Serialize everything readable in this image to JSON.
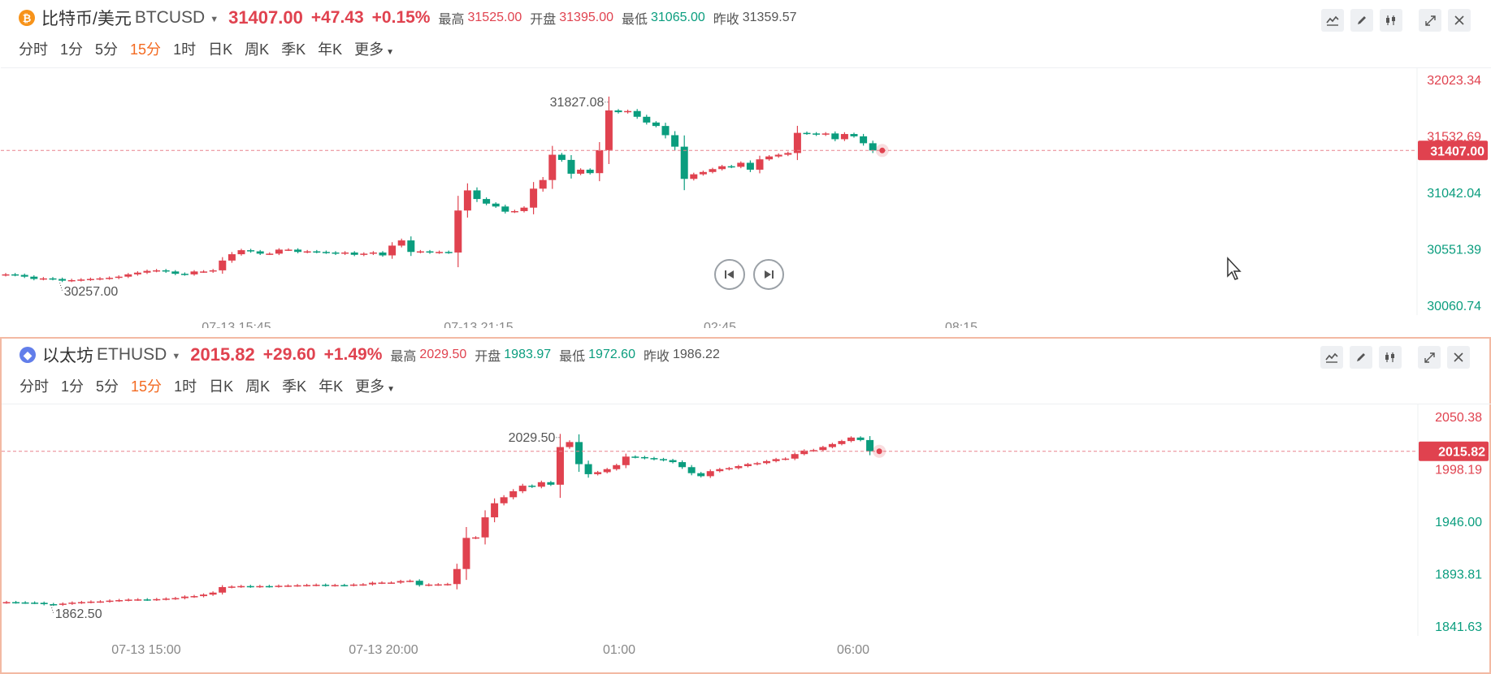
{
  "btc": {
    "name": "比特币/美元",
    "symbol": "BTCUSD",
    "price": "31407.00",
    "change": "+47.43",
    "change_pct": "+0.15%",
    "high_label": "最高",
    "high": "31525.00",
    "open_label": "开盘",
    "open": "31395.00",
    "low_label": "最低",
    "low": "31065.00",
    "prev_label": "昨收",
    "prev": "31359.57",
    "y_ticks": [
      "32023.34",
      "31532.69",
      "31042.04",
      "30551.39",
      "30060.74"
    ],
    "y_range": [
      30060.74,
      32023.34
    ],
    "x_ticks": [
      "07-13 15:45",
      "07-13 21:15",
      "02:45",
      "08:15"
    ],
    "max_label": "31827.08",
    "min_label": "30257.00",
    "current_tag": "31407.00",
    "closes": [
      30330,
      30325,
      30310,
      30290,
      30295,
      30290,
      30275,
      30280,
      30285,
      30290,
      30295,
      30300,
      30310,
      30330,
      30345,
      30360,
      30365,
      30355,
      30335,
      30330,
      30355,
      30355,
      30365,
      30450,
      30505,
      30540,
      30530,
      30510,
      30510,
      30545,
      30545,
      30525,
      30530,
      30525,
      30520,
      30510,
      30520,
      30500,
      30510,
      30520,
      30495,
      30580,
      30625,
      30525,
      30530,
      30520,
      30525,
      30520,
      30885,
      31060,
      30985,
      30945,
      30920,
      30875,
      30880,
      30910,
      31075,
      31150,
      31370,
      31325,
      31205,
      31240,
      31210,
      31410,
      31755,
      31740,
      31750,
      31700,
      31650,
      31620,
      31540,
      31440,
      31160,
      31200,
      31220,
      31245,
      31270,
      31265,
      31300,
      31240,
      31330,
      31355,
      31370,
      31385,
      31560,
      31555,
      31545,
      31555,
      31505,
      31550,
      31530,
      31470,
      31407
    ],
    "colors": {
      "up": "#e0424f",
      "down": "#0a9d7e"
    }
  },
  "eth": {
    "name": "以太坊",
    "symbol": "ETHUSD",
    "price": "2015.82",
    "change": "+29.60",
    "change_pct": "+1.49%",
    "high_label": "最高",
    "high": "2029.50",
    "open_label": "开盘",
    "open": "1983.97",
    "low_label": "最低",
    "low": "1972.60",
    "prev_label": "昨收",
    "prev": "1986.22",
    "y_ticks": [
      "2050.38",
      "1998.19",
      "1946.00",
      "1893.81",
      "1841.63"
    ],
    "y_range": [
      1841.63,
      2050.38
    ],
    "x_ticks": [
      "07-13 15:00",
      "07-13 20:00",
      "01:00",
      "06:00"
    ],
    "max_label": "2029.50",
    "min_label": "1862.50",
    "current_tag": "2015.82",
    "closes": [
      1865.5,
      1865.2,
      1865,
      1864.8,
      1863.5,
      1863,
      1864,
      1865,
      1865.5,
      1866,
      1866.2,
      1867,
      1867.5,
      1868,
      1868.2,
      1868,
      1868.5,
      1869,
      1869.5,
      1871,
      1871.5,
      1873,
      1875,
      1880.5,
      1881,
      1881.5,
      1881,
      1881.5,
      1881.2,
      1881.8,
      1882,
      1882.3,
      1882.5,
      1882.8,
      1882.2,
      1882.5,
      1882.4,
      1883,
      1883.2,
      1884.8,
      1885,
      1885,
      1886.5,
      1886.8,
      1882.5,
      1883,
      1883.2,
      1883.5,
      1898.5,
      1929.5,
      1930,
      1950,
      1964,
      1970,
      1976,
      1981.5,
      1980.5,
      1985,
      1982.5,
      2020,
      2025,
      2003,
      1993,
      1995,
      1998,
      2002,
      2010.5,
      2010,
      2009,
      2008,
      2007,
      2005,
      2000,
      1994,
      1991,
      1996,
      1998,
      1999,
      2001,
      2003,
      2004,
      2006,
      2008,
      2008.5,
      2013,
      2016.5,
      2017,
      2020,
      2023,
      2026,
      2029.5,
      2027,
      2015.8
    ],
    "colors": {
      "up": "#e0424f",
      "down": "#0a9d7e"
    }
  },
  "periods": [
    "分时",
    "1分",
    "5分",
    "15分",
    "1时",
    "日K",
    "周K",
    "季K",
    "年K",
    "更多"
  ],
  "active_period": "15分",
  "tool_icons": [
    "indicator-icon",
    "draw-pen-icon",
    "candle-type-icon",
    "expand-icon",
    "close-icon"
  ]
}
